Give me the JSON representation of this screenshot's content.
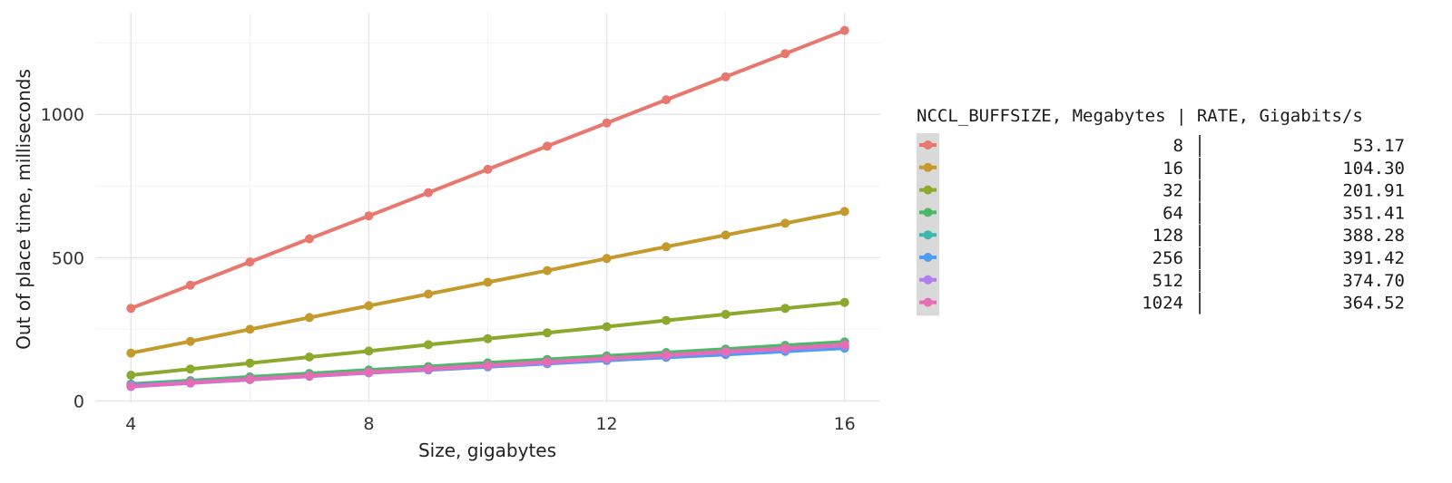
{
  "chart_data": {
    "type": "line",
    "xlabel": "Size, gigabytes",
    "ylabel": "Out of place time, milliseconds",
    "xlim": [
      3.4,
      16.6
    ],
    "ylim": [
      -5,
      1355
    ],
    "x_ticks": [
      4,
      8,
      12,
      16
    ],
    "y_ticks": [
      0,
      500,
      1000
    ],
    "x_tick_labels": [
      "4",
      "8",
      "12",
      "16"
    ],
    "y_tick_labels": [
      "0",
      "500",
      "1000"
    ],
    "grid": true,
    "legend_position": "right",
    "legend_title": "NCCL_BUFFSIZE, Megabytes | RATE, Gigabits/s",
    "x": [
      4,
      5,
      6,
      7,
      8,
      9,
      10,
      11,
      12,
      13,
      14,
      15,
      16
    ],
    "series": [
      {
        "name": "8 | 53.17",
        "buffsize": "8",
        "rate": "53.17",
        "color": "#E8776E",
        "values": [
          323,
          404,
          485,
          566,
          646,
          727,
          808,
          889,
          970,
          1051,
          1131,
          1212,
          1293
        ]
      },
      {
        "name": "16 | 104.30",
        "buffsize": "16",
        "rate": "104.30",
        "color": "#C49A2C",
        "values": [
          167,
          208,
          250,
          291,
          332,
          373,
          414,
          455,
          497,
          538,
          579,
          620,
          661
        ]
      },
      {
        "name": "32 | 201.91",
        "buffsize": "32",
        "rate": "201.91",
        "color": "#8BAA2D",
        "values": [
          90,
          111,
          132,
          153,
          174,
          196,
          217,
          238,
          259,
          281,
          302,
          323,
          344
        ]
      },
      {
        "name": "64 | 351.41",
        "buffsize": "64",
        "rate": "351.41",
        "color": "#4DB86A",
        "values": [
          59,
          71,
          84,
          96,
          108,
          120,
          133,
          145,
          157,
          169,
          181,
          194,
          206
        ]
      },
      {
        "name": "128 | 388.28",
        "buffsize": "128",
        "rate": "388.28",
        "color": "#3DB8B0",
        "values": [
          55,
          66,
          77,
          88,
          99,
          110,
          121,
          132,
          143,
          154,
          165,
          176,
          188
        ]
      },
      {
        "name": "256 | 391.42",
        "buffsize": "256",
        "rate": "391.42",
        "color": "#4D9EF0",
        "values": [
          55,
          65,
          76,
          87,
          98,
          108,
          119,
          130,
          141,
          152,
          162,
          173,
          184
        ]
      },
      {
        "name": "512 | 374.70",
        "buffsize": "512",
        "rate": "374.70",
        "color": "#B07CF0",
        "values": [
          50,
          62,
          74,
          86,
          98,
          110,
          122,
          134,
          146,
          158,
          170,
          181,
          193
        ]
      },
      {
        "name": "1024 | 364.52",
        "buffsize": "1024",
        "rate": "364.52",
        "color": "#E86BB6",
        "values": [
          52,
          64,
          76,
          88,
          100,
          112,
          124,
          136,
          148,
          160,
          172,
          184,
          196
        ]
      }
    ]
  }
}
